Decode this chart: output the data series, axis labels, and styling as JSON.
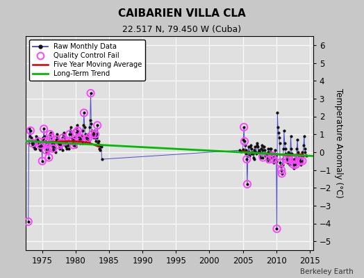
{
  "title": "CAIBARIEN VILLA CLA",
  "subtitle": "22.517 N, 79.450 W (Cuba)",
  "ylabel": "Temperature Anomaly (°C)",
  "watermark": "Berkeley Earth",
  "xlim": [
    1972.5,
    2015.5
  ],
  "ylim": [
    -5.5,
    6.5
  ],
  "yticks": [
    -5,
    -4,
    -3,
    -2,
    -1,
    0,
    1,
    2,
    3,
    4,
    5,
    6
  ],
  "xticks": [
    1975,
    1980,
    1985,
    1990,
    1995,
    2000,
    2005,
    2010,
    2015
  ],
  "bg_color": "#c8c8c8",
  "plot_bg_color": "#e0e0e0",
  "raw_data": [
    [
      1972.917,
      -3.9
    ],
    [
      1973.0,
      0.5
    ],
    [
      1973.083,
      1.3
    ],
    [
      1973.167,
      0.9
    ],
    [
      1973.25,
      1.2
    ],
    [
      1973.333,
      0.8
    ],
    [
      1973.417,
      0.7
    ],
    [
      1973.5,
      0.5
    ],
    [
      1973.583,
      0.4
    ],
    [
      1973.667,
      0.3
    ],
    [
      1973.75,
      0.6
    ],
    [
      1973.833,
      0.5
    ],
    [
      1973.917,
      0.2
    ],
    [
      1974.0,
      0.2
    ],
    [
      1974.083,
      0.9
    ],
    [
      1974.167,
      0.8
    ],
    [
      1974.25,
      0.7
    ],
    [
      1974.333,
      0.5
    ],
    [
      1974.417,
      0.6
    ],
    [
      1974.5,
      0.3
    ],
    [
      1974.583,
      0.2
    ],
    [
      1974.667,
      0.1
    ],
    [
      1974.75,
      0.4
    ],
    [
      1974.833,
      0.5
    ],
    [
      1974.917,
      0.3
    ],
    [
      1975.0,
      -0.5
    ],
    [
      1975.083,
      0.8
    ],
    [
      1975.167,
      0.7
    ],
    [
      1975.25,
      1.3
    ],
    [
      1975.333,
      0.9
    ],
    [
      1975.417,
      0.6
    ],
    [
      1975.5,
      0.4
    ],
    [
      1975.583,
      0.1
    ],
    [
      1975.667,
      0.0
    ],
    [
      1975.75,
      0.5
    ],
    [
      1975.833,
      0.4
    ],
    [
      1975.917,
      0.2
    ],
    [
      1976.0,
      -0.3
    ],
    [
      1976.083,
      0.6
    ],
    [
      1976.167,
      1.0
    ],
    [
      1976.25,
      1.1
    ],
    [
      1976.333,
      0.8
    ],
    [
      1976.417,
      0.5
    ],
    [
      1976.5,
      0.3
    ],
    [
      1976.583,
      0.2
    ],
    [
      1976.667,
      0.1
    ],
    [
      1976.75,
      0.4
    ],
    [
      1976.833,
      0.5
    ],
    [
      1976.917,
      0.3
    ],
    [
      1977.0,
      0.0
    ],
    [
      1977.083,
      0.7
    ],
    [
      1977.167,
      0.9
    ],
    [
      1977.25,
      1.0
    ],
    [
      1977.333,
      0.7
    ],
    [
      1977.417,
      0.5
    ],
    [
      1977.5,
      0.4
    ],
    [
      1977.583,
      0.3
    ],
    [
      1977.667,
      0.2
    ],
    [
      1977.75,
      0.5
    ],
    [
      1977.833,
      0.6
    ],
    [
      1977.917,
      0.4
    ],
    [
      1978.0,
      0.1
    ],
    [
      1978.083,
      0.8
    ],
    [
      1978.167,
      1.0
    ],
    [
      1978.25,
      1.1
    ],
    [
      1978.333,
      0.8
    ],
    [
      1978.417,
      0.6
    ],
    [
      1978.5,
      0.4
    ],
    [
      1978.583,
      0.3
    ],
    [
      1978.667,
      0.2
    ],
    [
      1978.75,
      0.5
    ],
    [
      1978.833,
      0.6
    ],
    [
      1978.917,
      0.4
    ],
    [
      1979.0,
      0.2
    ],
    [
      1979.083,
      1.0
    ],
    [
      1979.167,
      1.2
    ],
    [
      1979.25,
      1.4
    ],
    [
      1979.333,
      1.0
    ],
    [
      1979.417,
      0.8
    ],
    [
      1979.5,
      0.6
    ],
    [
      1979.583,
      0.5
    ],
    [
      1979.667,
      0.4
    ],
    [
      1979.75,
      0.7
    ],
    [
      1979.833,
      0.8
    ],
    [
      1979.917,
      0.6
    ],
    [
      1980.0,
      0.3
    ],
    [
      1980.083,
      1.1
    ],
    [
      1980.167,
      1.3
    ],
    [
      1980.25,
      1.5
    ],
    [
      1980.333,
      1.2
    ],
    [
      1980.417,
      0.9
    ],
    [
      1980.5,
      0.7
    ],
    [
      1980.583,
      0.6
    ],
    [
      1980.667,
      0.5
    ],
    [
      1980.75,
      0.8
    ],
    [
      1980.833,
      0.9
    ],
    [
      1980.917,
      0.7
    ],
    [
      1981.0,
      0.5
    ],
    [
      1981.083,
      1.2
    ],
    [
      1981.167,
      1.5
    ],
    [
      1981.25,
      2.2
    ],
    [
      1981.333,
      1.4
    ],
    [
      1981.417,
      1.0
    ],
    [
      1981.5,
      0.8
    ],
    [
      1981.583,
      0.7
    ],
    [
      1981.667,
      0.6
    ],
    [
      1981.75,
      0.9
    ],
    [
      1981.833,
      1.0
    ],
    [
      1981.917,
      0.8
    ],
    [
      1982.0,
      0.6
    ],
    [
      1982.083,
      1.4
    ],
    [
      1982.167,
      1.8
    ],
    [
      1982.25,
      3.3
    ],
    [
      1982.333,
      1.6
    ],
    [
      1982.417,
      1.2
    ],
    [
      1982.5,
      1.0
    ],
    [
      1982.583,
      0.9
    ],
    [
      1982.667,
      0.8
    ],
    [
      1982.75,
      1.1
    ],
    [
      1982.833,
      1.2
    ],
    [
      1982.917,
      1.0
    ],
    [
      1983.0,
      0.6
    ],
    [
      1983.083,
      1.0
    ],
    [
      1983.167,
      0.8
    ],
    [
      1983.25,
      1.5
    ],
    [
      1983.333,
      0.5
    ],
    [
      1983.417,
      0.6
    ],
    [
      1983.5,
      0.4
    ],
    [
      1983.583,
      0.2
    ],
    [
      1983.667,
      0.1
    ],
    [
      1983.75,
      0.4
    ],
    [
      1983.833,
      0.3
    ],
    [
      1983.917,
      -0.4
    ],
    [
      2004.5,
      0.1
    ],
    [
      2004.75,
      0.05
    ],
    [
      2005.0,
      0.15
    ],
    [
      2005.083,
      0.7
    ],
    [
      2005.167,
      1.4
    ],
    [
      2005.25,
      0.6
    ],
    [
      2005.333,
      0.4
    ],
    [
      2005.417,
      0.1
    ],
    [
      2005.5,
      -0.1
    ],
    [
      2005.583,
      -0.4
    ],
    [
      2005.667,
      -1.8
    ],
    [
      2005.75,
      -0.2
    ],
    [
      2005.833,
      0.3
    ],
    [
      2005.917,
      0.0
    ],
    [
      2006.0,
      -0.2
    ],
    [
      2006.083,
      0.3
    ],
    [
      2006.167,
      0.4
    ],
    [
      2006.25,
      0.2
    ],
    [
      2006.333,
      -0.1
    ],
    [
      2006.417,
      0.0
    ],
    [
      2006.5,
      -0.1
    ],
    [
      2006.583,
      -0.3
    ],
    [
      2006.667,
      -0.4
    ],
    [
      2006.75,
      0.1
    ],
    [
      2006.833,
      0.3
    ],
    [
      2006.917,
      0.0
    ],
    [
      2007.0,
      -0.1
    ],
    [
      2007.083,
      0.4
    ],
    [
      2007.167,
      0.5
    ],
    [
      2007.25,
      0.3
    ],
    [
      2007.333,
      0.0
    ],
    [
      2007.417,
      0.1
    ],
    [
      2007.5,
      0.0
    ],
    [
      2007.583,
      -0.2
    ],
    [
      2007.667,
      -0.3
    ],
    [
      2007.75,
      0.2
    ],
    [
      2007.833,
      0.4
    ],
    [
      2007.917,
      0.1
    ],
    [
      2008.0,
      -0.3
    ],
    [
      2008.083,
      0.3
    ],
    [
      2008.167,
      0.3
    ],
    [
      2008.25,
      0.1
    ],
    [
      2008.333,
      -0.2
    ],
    [
      2008.417,
      -0.1
    ],
    [
      2008.5,
      -0.2
    ],
    [
      2008.583,
      -0.3
    ],
    [
      2008.667,
      -0.5
    ],
    [
      2008.75,
      0.0
    ],
    [
      2008.833,
      0.2
    ],
    [
      2008.917,
      -0.1
    ],
    [
      2009.0,
      -0.4
    ],
    [
      2009.083,
      0.2
    ],
    [
      2009.167,
      0.2
    ],
    [
      2009.25,
      0.0
    ],
    [
      2009.333,
      -0.3
    ],
    [
      2009.417,
      -0.2
    ],
    [
      2009.5,
      -0.2
    ],
    [
      2009.583,
      -0.4
    ],
    [
      2009.667,
      -0.6
    ],
    [
      2009.75,
      -0.1
    ],
    [
      2009.833,
      0.1
    ],
    [
      2009.917,
      -0.2
    ],
    [
      2010.0,
      -0.5
    ],
    [
      2010.083,
      -4.3
    ],
    [
      2010.167,
      2.2
    ],
    [
      2010.25,
      1.4
    ],
    [
      2010.333,
      1.1
    ],
    [
      2010.417,
      0.8
    ],
    [
      2010.5,
      0.5
    ],
    [
      2010.583,
      -0.6
    ],
    [
      2010.667,
      -0.8
    ],
    [
      2010.75,
      -1.0
    ],
    [
      2010.833,
      -1.2
    ],
    [
      2010.917,
      -0.7
    ],
    [
      2011.0,
      -0.4
    ],
    [
      2011.083,
      0.2
    ],
    [
      2011.167,
      1.2
    ],
    [
      2011.25,
      0.5
    ],
    [
      2011.333,
      0.2
    ],
    [
      2011.417,
      -0.1
    ],
    [
      2011.5,
      -0.2
    ],
    [
      2011.583,
      -0.4
    ],
    [
      2011.667,
      -0.6
    ],
    [
      2011.75,
      -0.1
    ],
    [
      2011.833,
      0.0
    ],
    [
      2011.917,
      -0.4
    ],
    [
      2012.0,
      -0.7
    ],
    [
      2012.083,
      -0.1
    ],
    [
      2012.167,
      0.9
    ],
    [
      2012.25,
      0.2
    ],
    [
      2012.333,
      -0.1
    ],
    [
      2012.417,
      -0.4
    ],
    [
      2012.5,
      -0.5
    ],
    [
      2012.583,
      -0.7
    ],
    [
      2012.667,
      -0.9
    ],
    [
      2012.75,
      -0.4
    ],
    [
      2012.833,
      -0.2
    ],
    [
      2012.917,
      -0.7
    ],
    [
      2013.0,
      -0.4
    ],
    [
      2013.083,
      0.2
    ],
    [
      2013.167,
      0.7
    ],
    [
      2013.25,
      0.0
    ],
    [
      2013.333,
      -0.3
    ],
    [
      2013.417,
      -0.4
    ],
    [
      2013.5,
      -0.3
    ],
    [
      2013.583,
      -0.5
    ],
    [
      2013.667,
      -0.7
    ],
    [
      2013.75,
      -0.2
    ],
    [
      2013.833,
      0.0
    ],
    [
      2013.917,
      -0.5
    ],
    [
      2014.0,
      -0.2
    ],
    [
      2014.083,
      0.4
    ],
    [
      2014.167,
      0.9
    ],
    [
      2014.25,
      0.2
    ],
    [
      2014.333,
      0.0
    ],
    [
      2014.5,
      -0.2
    ]
  ],
  "qc_fail": [
    [
      1972.917,
      -3.9
    ],
    [
      1973.25,
      1.2
    ],
    [
      1973.5,
      0.5
    ],
    [
      1974.417,
      0.6
    ],
    [
      1974.75,
      0.4
    ],
    [
      1975.0,
      -0.5
    ],
    [
      1975.25,
      1.3
    ],
    [
      1975.417,
      0.6
    ],
    [
      1975.583,
      0.1
    ],
    [
      1975.75,
      0.5
    ],
    [
      1975.917,
      0.2
    ],
    [
      1976.0,
      -0.3
    ],
    [
      1976.167,
      1.0
    ],
    [
      1976.333,
      0.8
    ],
    [
      1976.583,
      0.2
    ],
    [
      1977.083,
      0.7
    ],
    [
      1977.5,
      0.4
    ],
    [
      1977.75,
      0.5
    ],
    [
      1978.083,
      0.8
    ],
    [
      1978.417,
      0.6
    ],
    [
      1979.083,
      1.0
    ],
    [
      1979.5,
      0.6
    ],
    [
      1979.667,
      0.4
    ],
    [
      1980.083,
      1.1
    ],
    [
      1980.333,
      1.2
    ],
    [
      1980.5,
      0.7
    ],
    [
      1980.75,
      0.8
    ],
    [
      1981.25,
      2.2
    ],
    [
      1981.583,
      0.7
    ],
    [
      1981.917,
      0.8
    ],
    [
      1982.25,
      3.3
    ],
    [
      1982.5,
      1.0
    ],
    [
      1982.917,
      1.0
    ],
    [
      1983.25,
      1.5
    ],
    [
      2005.167,
      1.4
    ],
    [
      2005.25,
      0.6
    ],
    [
      2005.583,
      -0.4
    ],
    [
      2005.667,
      -1.8
    ],
    [
      2008.0,
      -0.3
    ],
    [
      2009.0,
      -0.4
    ],
    [
      2009.417,
      -0.2
    ],
    [
      2009.583,
      -0.4
    ],
    [
      2010.083,
      -4.3
    ],
    [
      2010.583,
      -0.6
    ],
    [
      2010.75,
      -1.0
    ],
    [
      2010.833,
      -1.2
    ],
    [
      2011.583,
      -0.4
    ],
    [
      2011.917,
      -0.4
    ],
    [
      2012.417,
      -0.4
    ],
    [
      2012.583,
      -0.7
    ],
    [
      2012.75,
      -0.4
    ],
    [
      2012.917,
      -0.7
    ],
    [
      2013.583,
      -0.5
    ],
    [
      2013.917,
      -0.5
    ]
  ],
  "moving_avg_1": [
    [
      1975.5,
      0.55
    ],
    [
      1976.0,
      0.57
    ],
    [
      1977.0,
      0.58
    ],
    [
      1978.0,
      0.6
    ],
    [
      1979.0,
      0.62
    ],
    [
      1980.0,
      0.6
    ],
    [
      1981.0,
      0.58
    ],
    [
      1982.0,
      0.52
    ],
    [
      1983.5,
      0.3
    ]
  ],
  "moving_avg_2": [
    [
      2005.0,
      0.05
    ],
    [
      2006.0,
      -0.02
    ],
    [
      2007.0,
      -0.05
    ],
    [
      2008.0,
      -0.08
    ],
    [
      2009.0,
      -0.08
    ],
    [
      2010.0,
      -0.12
    ],
    [
      2011.0,
      -0.15
    ],
    [
      2012.0,
      -0.18
    ],
    [
      2013.0,
      -0.15
    ],
    [
      2014.0,
      -0.12
    ]
  ],
  "trend_x": [
    1972.5,
    2015.5
  ],
  "trend_y": [
    0.62,
    -0.22
  ],
  "line_color": "#3333cc",
  "dot_color": "#111111",
  "qc_color": "#ff44ff",
  "ma_color": "#cc0000",
  "trend_color": "#00bb00"
}
